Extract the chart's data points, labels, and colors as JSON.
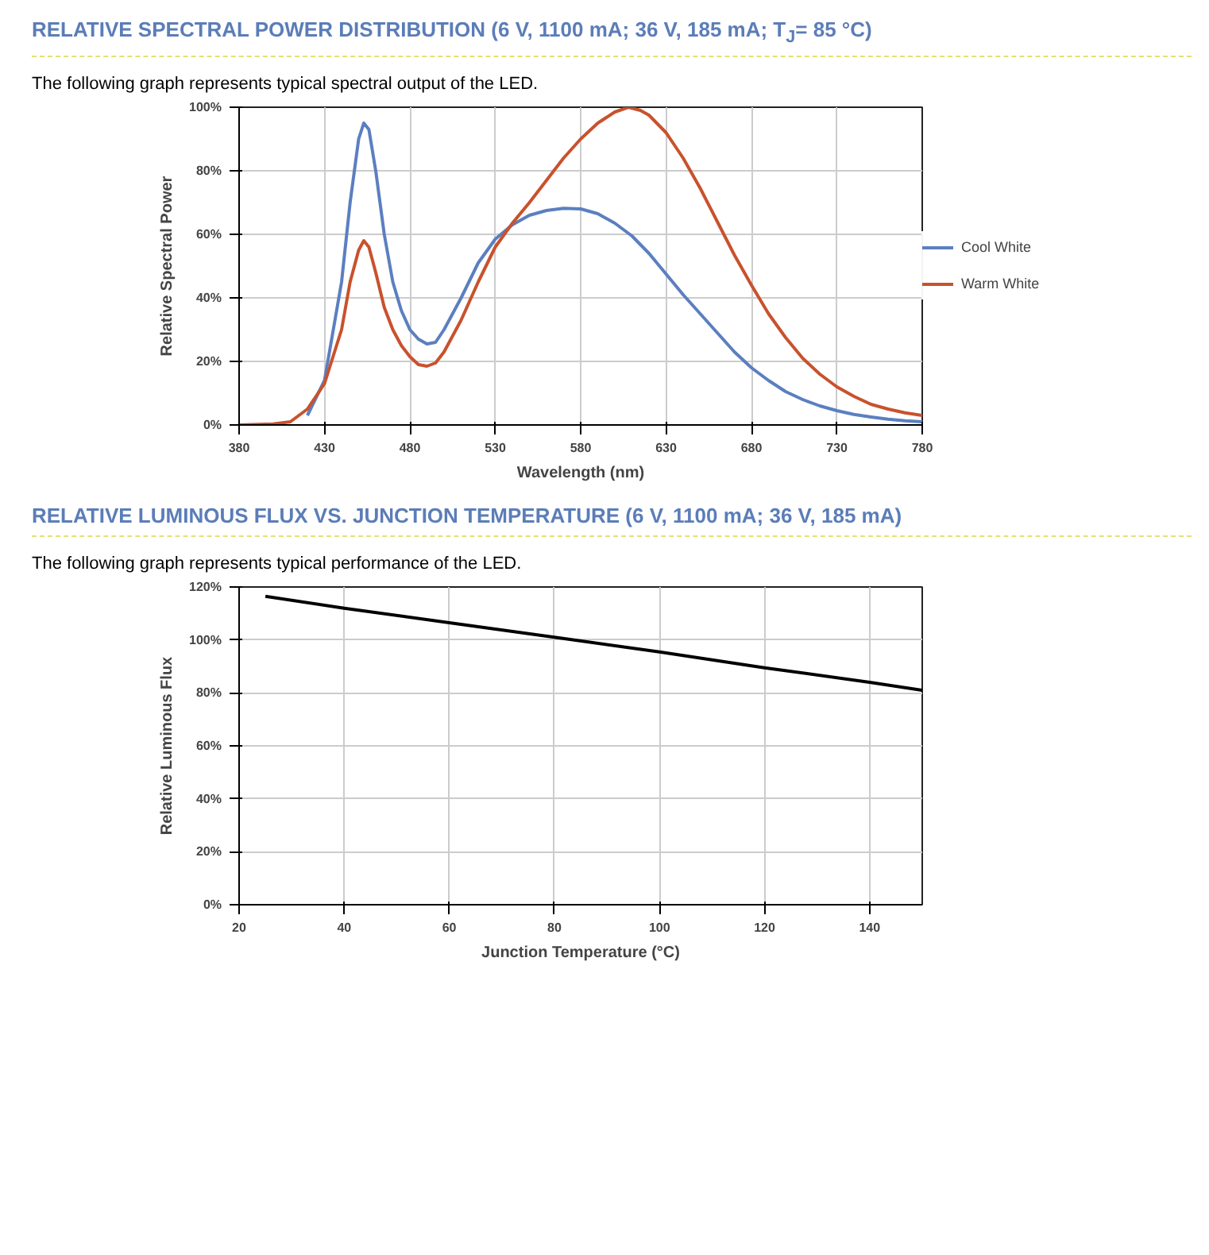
{
  "chart_data": [
    {
      "type": "line",
      "title": "RELATIVE SPECTRAL POWER DISTRIBUTION (6 V, 1100 mA; 36 V, 185 mA; T$_{J}$= 85 °C)",
      "subtitle": "The following graph represents typical spectral output of the LED.",
      "xlabel": "Wavelength (nm)",
      "ylabel": "Relative Spectral Power",
      "xlim": [
        380,
        780
      ],
      "xticks": [
        380,
        430,
        480,
        530,
        580,
        630,
        680,
        730,
        780
      ],
      "ylim": [
        0,
        100
      ],
      "yticks": [
        {
          "value": 0,
          "label": "0%"
        },
        {
          "value": 20,
          "label": "20%"
        },
        {
          "value": 40,
          "label": "40%"
        },
        {
          "value": 60,
          "label": "60%"
        },
        {
          "value": 80,
          "label": "80%"
        },
        {
          "value": 100,
          "label": "100%"
        }
      ],
      "grid": true,
      "legend": "right",
      "marker": "none",
      "line_style": "solid",
      "series": [
        {
          "name": "Cool White",
          "color": "#5b7fc0",
          "x": [
            420,
            430,
            440,
            445,
            450,
            453,
            456,
            460,
            465,
            470,
            475,
            480,
            485,
            490,
            495,
            500,
            510,
            520,
            530,
            540,
            550,
            560,
            570,
            580,
            590,
            600,
            610,
            620,
            630,
            640,
            650,
            660,
            670,
            680,
            690,
            700,
            710,
            720,
            730,
            740,
            750,
            760,
            770,
            780
          ],
          "values": [
            3,
            14,
            45,
            70,
            90,
            95,
            93,
            80,
            60,
            45,
            36,
            30,
            27,
            25.5,
            26,
            30,
            40,
            51,
            58.5,
            63,
            66,
            67.5,
            68.2,
            68,
            66.5,
            63.5,
            59.5,
            54,
            47.5,
            41,
            35,
            29,
            23,
            18,
            14,
            10.5,
            8,
            6,
            4.5,
            3.3,
            2.5,
            1.8,
            1.3,
            1.0
          ]
        },
        {
          "name": "Warm White",
          "color": "#c8522d",
          "x": [
            380,
            400,
            410,
            420,
            430,
            440,
            445,
            450,
            453,
            456,
            460,
            465,
            470,
            475,
            480,
            485,
            490,
            495,
            500,
            510,
            520,
            530,
            540,
            550,
            560,
            570,
            580,
            590,
            600,
            608,
            615,
            620,
            630,
            640,
            650,
            660,
            670,
            680,
            690,
            700,
            710,
            720,
            730,
            740,
            750,
            760,
            770,
            780
          ],
          "values": [
            0,
            0.3,
            1,
            5,
            13,
            30,
            45,
            55,
            58,
            56,
            48,
            37,
            30,
            25,
            21.5,
            19,
            18.5,
            19.5,
            23,
            33,
            45,
            56,
            63.5,
            70,
            77,
            84,
            90,
            95,
            98.5,
            100,
            99,
            97.5,
            92,
            84,
            74.5,
            64,
            53.5,
            44,
            35,
            27.5,
            21,
            16,
            12,
            9,
            6.5,
            5,
            3.8,
            3.0
          ]
        }
      ]
    },
    {
      "type": "line",
      "title": "RELATIVE LUMINOUS FLUX VS. JUNCTION TEMPERATURE (6 V, 1100 mA; 36 V, 185 mA)",
      "subtitle": "The following graph represents typical performance of the LED.",
      "xlabel": "Junction Temperature (°C)",
      "ylabel": "Relative Luminous Flux",
      "xlim": [
        20,
        150
      ],
      "xticks": [
        20,
        40,
        60,
        80,
        100,
        120,
        140
      ],
      "ylim": [
        0,
        120
      ],
      "yticks": [
        {
          "value": 0,
          "label": "0%"
        },
        {
          "value": 20,
          "label": "20%"
        },
        {
          "value": 40,
          "label": "40%"
        },
        {
          "value": 60,
          "label": "60%"
        },
        {
          "value": 80,
          "label": "80%"
        },
        {
          "value": 100,
          "label": "100%"
        },
        {
          "value": 120,
          "label": "120%"
        }
      ],
      "grid": true,
      "marker": "none",
      "line_style": "solid",
      "series": [
        {
          "color": "#000000",
          "x": [
            25,
            40,
            60,
            80,
            100,
            120,
            140,
            150
          ],
          "values": [
            116.5,
            112,
            106.5,
            101,
            95.5,
            89.5,
            84,
            81
          ]
        }
      ]
    }
  ]
}
